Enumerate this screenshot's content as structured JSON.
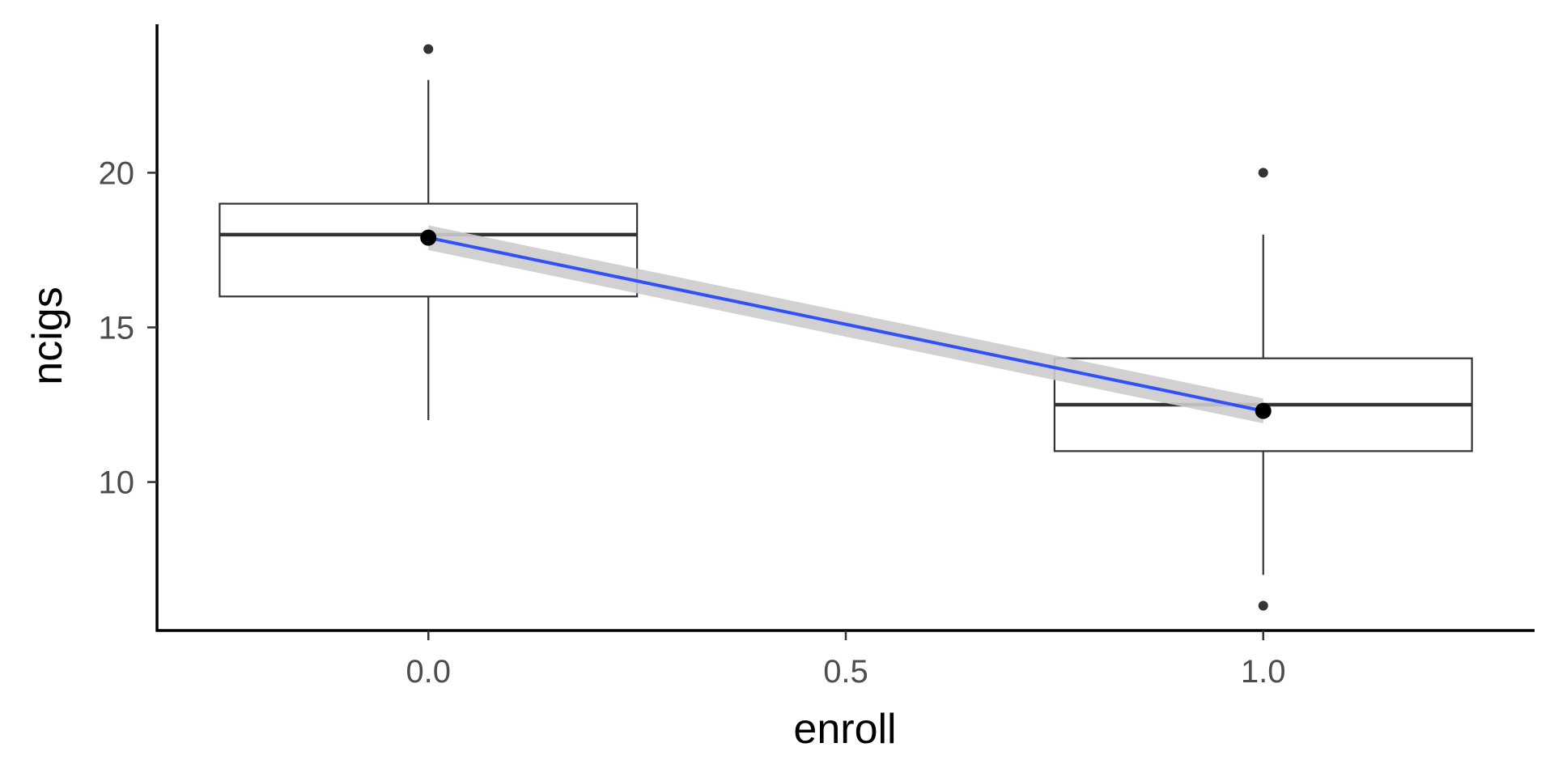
{
  "chart_data": {
    "type": "boxplot",
    "xlabel": "enroll",
    "ylabel": "ncigs",
    "xlim": [
      -0.325,
      1.325
    ],
    "ylim": [
      5.2,
      24.8
    ],
    "x_ticks": [
      {
        "value": 0.0,
        "label": "0.0"
      },
      {
        "value": 0.5,
        "label": "0.5"
      },
      {
        "value": 1.0,
        "label": "1.0"
      }
    ],
    "y_ticks": [
      {
        "value": 10,
        "label": "10"
      },
      {
        "value": 15,
        "label": "15"
      },
      {
        "value": 20,
        "label": "20"
      }
    ],
    "grid": false,
    "boxes": [
      {
        "x": 0.0,
        "width": 0.5,
        "q1": 16,
        "median": 18,
        "q3": 19,
        "whisker_low": 12,
        "whisker_high": 23,
        "outliers": [
          24
        ]
      },
      {
        "x": 1.0,
        "width": 0.5,
        "q1": 11,
        "median": 12.5,
        "q3": 14,
        "whisker_low": 7,
        "whisker_high": 18,
        "outliers": [
          20,
          6
        ]
      }
    ],
    "means": [
      {
        "x": 0.0,
        "y": 17.9
      },
      {
        "x": 1.0,
        "y": 12.3
      }
    ],
    "regression_line": {
      "color": "#3050f8",
      "points": [
        {
          "x": 0.0,
          "y": 17.9
        },
        {
          "x": 1.0,
          "y": 12.3
        }
      ],
      "ci_lower": [
        17.5,
        11.9
      ],
      "ci_upper": [
        18.3,
        12.7
      ],
      "ci_color": "#cccccc"
    }
  }
}
